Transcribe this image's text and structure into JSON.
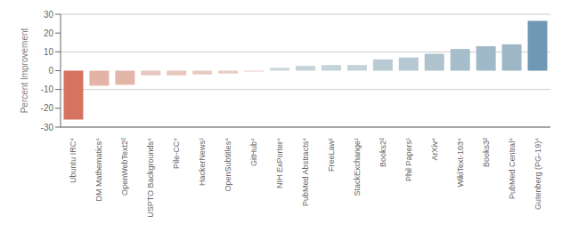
{
  "chart_data": {
    "type": "bar",
    "categories": [
      "Ubuntu IRC⁴",
      "DM Mathematics⁴",
      "OpenWebText2²",
      "USPTO Backgrounds⁴",
      "Pile-CC⁴",
      "HackerNews¹",
      "OpenSubtitles⁴",
      "GitHub⁴",
      "NIH ExPorter⁴",
      "PubMed Abstracts⁴",
      "FreeLaw¹",
      "StackExchange¹",
      "Books2²",
      "Phil Papers¹",
      "ArXiv⁴",
      "WikiText-103⁴",
      "Books3²",
      "PubMed Central⁴",
      "Gutenberg (PG-19)⁴"
    ],
    "values": [
      -26.0,
      -8.0,
      -7.5,
      -2.5,
      -2.5,
      -2.0,
      -1.5,
      -0.5,
      1.5,
      2.5,
      3.0,
      3.0,
      6.0,
      7.0,
      9.0,
      11.5,
      13.0,
      14.0,
      26.5
    ],
    "colors": [
      "#d4735e",
      "#e3b3a7",
      "#e3b5a9",
      "#e7c7bd",
      "#e7c7bd",
      "#e7c9bf",
      "#e8cbc1",
      "#e9cec5",
      "#cad6da",
      "#c7d3d9",
      "#c5d2d8",
      "#c5d2d8",
      "#bacad3",
      "#b6c8d2",
      "#afc3cf",
      "#a6bdcb",
      "#a0b9c9",
      "#9db7c7",
      "#6f98b4"
    ],
    "ylabel": "Percent Improvement",
    "ylim": [
      -30,
      30
    ],
    "yticks": [
      -30,
      -20,
      -10,
      0,
      10,
      20,
      30
    ],
    "grid": true
  }
}
